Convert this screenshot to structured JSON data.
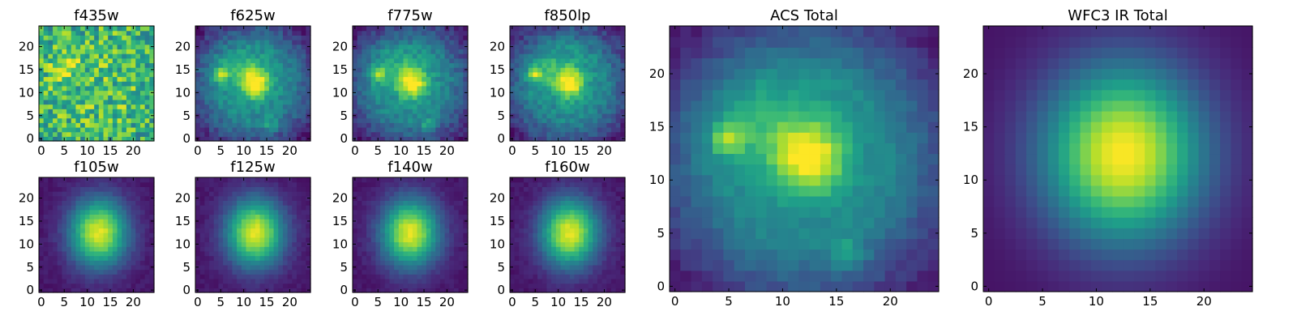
{
  "chart_data": [
    {
      "type": "heatmap",
      "title": "f435w",
      "grid_size": 25,
      "xlim": [
        0,
        24
      ],
      "ylim": [
        0,
        24
      ],
      "xticks": [
        0,
        5,
        10,
        15,
        20
      ],
      "yticks": [
        0,
        5,
        10,
        15,
        20
      ],
      "peak": {
        "x": 5,
        "y": 15
      },
      "structure": "noisy, weak source near (5,15)",
      "colormap": "viridis"
    },
    {
      "type": "heatmap",
      "title": "f625w",
      "grid_size": 25,
      "xlim": [
        0,
        24
      ],
      "ylim": [
        0,
        24
      ],
      "xticks": [
        0,
        5,
        10,
        15,
        20
      ],
      "yticks": [
        0,
        5,
        10,
        15,
        20
      ],
      "peak": {
        "x": 12.5,
        "y": 12
      },
      "secondary_sources": [
        {
          "x": 5,
          "y": 14
        },
        {
          "x": 16,
          "y": 3
        }
      ],
      "colormap": "viridis"
    },
    {
      "type": "heatmap",
      "title": "f775w",
      "grid_size": 25,
      "xlim": [
        0,
        24
      ],
      "ylim": [
        0,
        24
      ],
      "xticks": [
        0,
        5,
        10,
        15,
        20
      ],
      "yticks": [
        0,
        5,
        10,
        15,
        20
      ],
      "peak": {
        "x": 12.5,
        "y": 12
      },
      "secondary_sources": [
        {
          "x": 5,
          "y": 14
        },
        {
          "x": 16,
          "y": 3
        }
      ],
      "colormap": "viridis"
    },
    {
      "type": "heatmap",
      "title": "f850lp",
      "grid_size": 25,
      "xlim": [
        0,
        24
      ],
      "ylim": [
        0,
        24
      ],
      "xticks": [
        0,
        5,
        10,
        15,
        20
      ],
      "yticks": [
        0,
        5,
        10,
        15,
        20
      ],
      "peak": {
        "x": 12.5,
        "y": 12
      },
      "secondary_sources": [
        {
          "x": 5,
          "y": 14
        }
      ],
      "colormap": "viridis"
    },
    {
      "type": "heatmap",
      "title": "f105w",
      "grid_size": 25,
      "xlim": [
        0,
        24
      ],
      "ylim": [
        0,
        24
      ],
      "xticks": [
        0,
        5,
        10,
        15,
        20
      ],
      "yticks": [
        0,
        5,
        10,
        15,
        20
      ],
      "peak": {
        "x": 12.5,
        "y": 12.5
      },
      "colormap": "viridis"
    },
    {
      "type": "heatmap",
      "title": "f125w",
      "grid_size": 25,
      "xlim": [
        0,
        24
      ],
      "ylim": [
        0,
        24
      ],
      "xticks": [
        0,
        5,
        10,
        15,
        20
      ],
      "yticks": [
        0,
        5,
        10,
        15,
        20
      ],
      "peak": {
        "x": 12.5,
        "y": 12.5
      },
      "colormap": "viridis"
    },
    {
      "type": "heatmap",
      "title": "f140w",
      "grid_size": 25,
      "xlim": [
        0,
        24
      ],
      "ylim": [
        0,
        24
      ],
      "xticks": [
        0,
        5,
        10,
        15,
        20
      ],
      "yticks": [
        0,
        5,
        10,
        15,
        20
      ],
      "peak": {
        "x": 12,
        "y": 12.5
      },
      "colormap": "viridis"
    },
    {
      "type": "heatmap",
      "title": "f160w",
      "grid_size": 25,
      "xlim": [
        0,
        24
      ],
      "ylim": [
        0,
        24
      ],
      "xticks": [
        0,
        5,
        10,
        15,
        20
      ],
      "yticks": [
        0,
        5,
        10,
        15,
        20
      ],
      "peak": {
        "x": 12.5,
        "y": 12.5
      },
      "colormap": "viridis"
    },
    {
      "type": "heatmap",
      "title": "ACS Total",
      "grid_size": 25,
      "xlim": [
        0,
        24
      ],
      "ylim": [
        0,
        24
      ],
      "xticks": [
        0,
        5,
        10,
        15,
        20
      ],
      "yticks": [
        0,
        5,
        10,
        15,
        20
      ],
      "peak": {
        "x": 12.5,
        "y": 12
      },
      "secondary_sources": [
        {
          "x": 5,
          "y": 14
        },
        {
          "x": 16,
          "y": 3
        }
      ],
      "colormap": "viridis"
    },
    {
      "type": "heatmap",
      "title": "WFC3 IR Total",
      "grid_size": 25,
      "xlim": [
        0,
        24
      ],
      "ylim": [
        0,
        24
      ],
      "xticks": [
        0,
        5,
        10,
        15,
        20
      ],
      "yticks": [
        0,
        5,
        10,
        15,
        20
      ],
      "peak": {
        "x": 12.5,
        "y": 12.5
      },
      "colormap": "viridis"
    }
  ]
}
